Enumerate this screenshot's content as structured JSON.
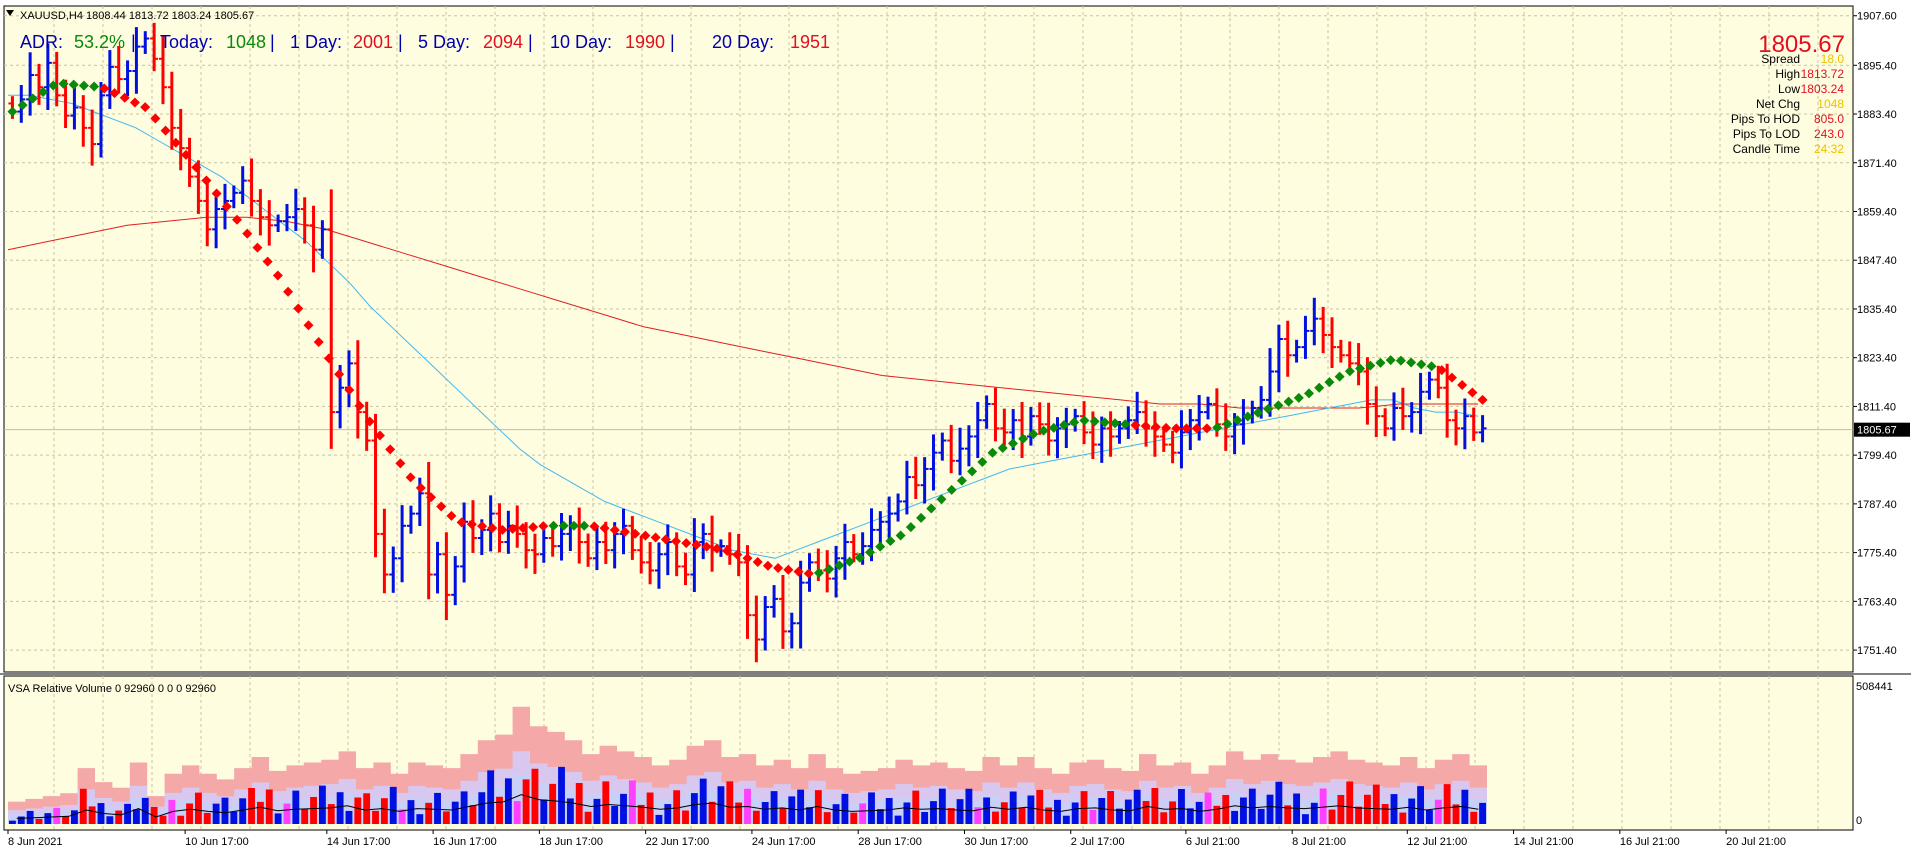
{
  "header": {
    "symbol": "XAUUSD,H4",
    "ohlc": "1808.44 1813.72 1803.24 1805.67"
  },
  "adr_bar": {
    "adr_label": "ADR:",
    "adr_value": "53.2%",
    "today_label": "Today:",
    "today_value": "1048",
    "d1_label": "1 Day:",
    "d1_value": "2001",
    "d5_label": "5 Day:",
    "d5_value": "2094",
    "d10_label": "10 Day:",
    "d10_value": "1990",
    "d20_label": "20 Day:",
    "d20_value": "1951"
  },
  "info_panel": {
    "price": "1805.67",
    "rows": [
      {
        "label": "Spread",
        "value": "18.0",
        "color": "#f0c000"
      },
      {
        "label": "High",
        "value": "1813.72",
        "color": "#e01020"
      },
      {
        "label": "Low",
        "value": "1803.24",
        "color": "#e01020"
      },
      {
        "label": "Net Chg",
        "value": "1048",
        "color": "#f0c000"
      },
      {
        "label": "Pips To HOD",
        "value": "805.0",
        "color": "#e01020"
      },
      {
        "label": "Pips To LOD",
        "value": "243.0",
        "color": "#e01020"
      },
      {
        "label": "Candle Time",
        "value": "24:32",
        "color": "#f0c000"
      }
    ]
  },
  "volume_panel": {
    "title": "VSA Relative Volume 0 92960 0 0 0 92960",
    "axis_max": "508441",
    "axis_min": "0"
  },
  "colors": {
    "background": "#fffde0",
    "grid": "#c8c4a0",
    "bull": "#0010e0",
    "bear": "#ff0000",
    "fast_ma": "#40b8f0",
    "slow_ma": "#e02020",
    "trend_up": "#0a8a0a",
    "trend_down": "#ff0000",
    "current_price_bg": "#000000"
  },
  "chart_data": {
    "type": "ohlc",
    "symbol": "XAUUSD",
    "timeframe": "H4",
    "ylim": [
      1746,
      1910
    ],
    "yticks": [
      1751.4,
      1763.4,
      1775.4,
      1787.4,
      1799.4,
      1811.4,
      1823.4,
      1835.4,
      1847.4,
      1859.4,
      1871.4,
      1883.4,
      1895.4,
      1907.6
    ],
    "current_price": 1805.67,
    "xticks": [
      {
        "label": "8 Jun 2021",
        "index": 0
      },
      {
        "label": "10 Jun 17:00",
        "index": 20
      },
      {
        "label": "14 Jun 17:00",
        "index": 36
      },
      {
        "label": "16 Jun 17:00",
        "index": 48
      },
      {
        "label": "18 Jun 17:00",
        "index": 60
      },
      {
        "label": "22 Jun 17:00",
        "index": 72
      },
      {
        "label": "24 Jun 17:00",
        "index": 84
      },
      {
        "label": "28 Jun 17:00",
        "index": 96
      },
      {
        "label": "30 Jun 17:00",
        "index": 108
      },
      {
        "label": "2 Jul 17:00",
        "index": 120
      },
      {
        "label": "6 Jul 21:00",
        "index": 133
      },
      {
        "label": "8 Jul 21:00",
        "index": 145
      },
      {
        "label": "12 Jul 21:00",
        "index": 158
      },
      {
        "label": "14 Jul 21:00",
        "index": 170
      },
      {
        "label": "16 Jul 21:00",
        "index": 182
      },
      {
        "label": "20 Jul 21:00",
        "index": 194
      }
    ],
    "close": [
      1884,
      1887,
      1893,
      1890,
      1896,
      1888,
      1883,
      1885,
      1880,
      1876,
      1888,
      1895,
      1892,
      1894,
      1900,
      1902,
      1897,
      1890,
      1880,
      1875,
      1868,
      1862,
      1855,
      1860,
      1862,
      1864,
      1867,
      1862,
      1858,
      1856,
      1857,
      1858,
      1860,
      1856,
      1850,
      1855,
      1810,
      1816,
      1822,
      1810,
      1803,
      1780,
      1770,
      1774,
      1782,
      1785,
      1790,
      1770,
      1775,
      1765,
      1772,
      1783,
      1779,
      1781,
      1785,
      1778,
      1782,
      1780,
      1776,
      1775,
      1779,
      1777,
      1780,
      1782,
      1778,
      1774,
      1778,
      1776,
      1780,
      1782,
      1776,
      1773,
      1771,
      1775,
      1778,
      1772,
      1770,
      1778,
      1780,
      1776,
      1777,
      1775,
      1773,
      1760,
      1754,
      1762,
      1764,
      1756,
      1758,
      1768,
      1773,
      1771,
      1769,
      1774,
      1778,
      1775,
      1777,
      1781,
      1783,
      1785,
      1788,
      1794,
      1792,
      1796,
      1800,
      1803,
      1798,
      1801,
      1804,
      1808,
      1812,
      1806,
      1805,
      1808,
      1804,
      1809,
      1807,
      1803,
      1806,
      1807,
      1809,
      1805,
      1802,
      1806,
      1804,
      1806,
      1808,
      1810,
      1806,
      1804,
      1802,
      1800,
      1805,
      1808,
      1810,
      1812,
      1807,
      1804,
      1807,
      1809,
      1811,
      1813,
      1820,
      1828,
      1824,
      1826,
      1830,
      1833,
      1829,
      1826,
      1824,
      1822,
      1820,
      1812,
      1809,
      1806,
      1811,
      1809,
      1810,
      1815,
      1818,
      1816,
      1808,
      1806,
      1809,
      1805,
      1806
    ],
    "series": [
      {
        "name": "fast_ma",
        "values": [
          1888,
          1888,
          1887,
          1886,
          1884,
          1882,
          1880,
          1877,
          1874,
          1871,
          1868,
          1864,
          1860,
          1856,
          1852,
          1847,
          1842,
          1836,
          1831,
          1826,
          1821,
          1816,
          1811,
          1806,
          1801,
          1797,
          1794,
          1791,
          1788,
          1786,
          1784,
          1782,
          1780,
          1778,
          1776,
          1775,
          1774,
          1776,
          1778,
          1780,
          1782,
          1784,
          1786,
          1788,
          1790,
          1792,
          1794,
          1796,
          1797,
          1798,
          1799,
          1800,
          1801,
          1802,
          1803,
          1804,
          1805,
          1806,
          1807,
          1808,
          1809,
          1810,
          1811,
          1812,
          1813,
          1813,
          1811,
          1810,
          1810,
          1809
        ]
      },
      {
        "name": "slow_ma",
        "values": [
          1850,
          1852,
          1854,
          1856,
          1857,
          1858,
          1858,
          1857,
          1855,
          1852,
          1849,
          1846,
          1843,
          1840,
          1837,
          1834,
          1831,
          1829,
          1827,
          1825,
          1823,
          1821,
          1819,
          1818,
          1817,
          1816,
          1815,
          1814,
          1813,
          1812,
          1812,
          1811,
          1811,
          1811,
          1811,
          1812,
          1812,
          1812
        ]
      },
      {
        "name": "trend_line",
        "values": [
          1884,
          1891,
          1890,
          1885,
          1872,
          1858,
          1843,
          1825,
          1808,
          1793,
          1783,
          1781,
          1782,
          1782,
          1780,
          1778,
          1776,
          1772,
          1770,
          1774,
          1780,
          1790,
          1800,
          1805,
          1808,
          1807,
          1806,
          1806,
          1810,
          1814,
          1820,
          1823,
          1821,
          1813
        ]
      }
    ],
    "volume": {
      "ylim": [
        0,
        508441
      ],
      "bars": [
        80000,
        90000,
        100000,
        110000,
        200000,
        150000,
        130000,
        220000,
        100000,
        180000,
        210000,
        180000,
        160000,
        200000,
        240000,
        190000,
        210000,
        220000,
        230000,
        260000,
        200000,
        220000,
        180000,
        220000,
        210000,
        200000,
        250000,
        300000,
        320000,
        420000,
        350000,
        330000,
        300000,
        250000,
        280000,
        260000,
        240000,
        210000,
        230000,
        280000,
        300000,
        240000,
        250000,
        210000,
        230000,
        200000,
        250000,
        200000,
        180000,
        190000,
        200000,
        230000,
        210000,
        220000,
        200000,
        190000,
        240000,
        210000,
        240000,
        200000,
        180000,
        220000,
        230000,
        200000,
        190000,
        250000,
        210000,
        220000,
        180000,
        210000,
        260000,
        230000,
        250000,
        230000,
        220000,
        240000,
        260000,
        230000,
        220000,
        210000,
        240000,
        200000,
        230000,
        250000,
        210000
      ]
    }
  }
}
